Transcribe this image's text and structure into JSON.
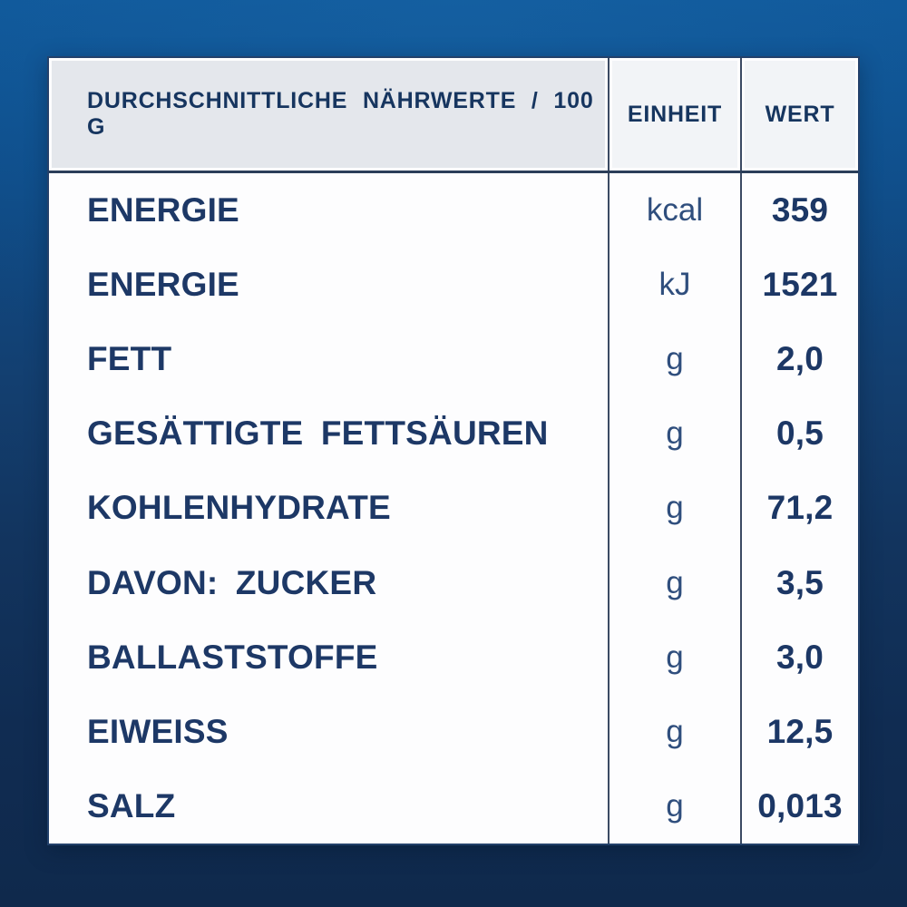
{
  "table": {
    "header": {
      "nutrients": "DURCHSCHNITTLICHE NÄHRWERTE / 100 G",
      "unit": "EINHEIT",
      "value": "WERT"
    },
    "rows": [
      {
        "label": "ENERGIE",
        "unit": "kcal",
        "value": "359"
      },
      {
        "label": "ENERGIE",
        "unit": "kJ",
        "value": "1521"
      },
      {
        "label": "FETT",
        "unit": "g",
        "value": "2,0"
      },
      {
        "label": "GESÄTTIGTE FETTSÄUREN",
        "unit": "g",
        "value": "0,5"
      },
      {
        "label": "KOHLENHYDRATE",
        "unit": "g",
        "value": "71,2"
      },
      {
        "label": "DAVON: ZUCKER",
        "unit": "g",
        "value": "3,5"
      },
      {
        "label": "BALLASTSTOFFE",
        "unit": "g",
        "value": "3,0"
      },
      {
        "label": "EIWEISS",
        "unit": "g",
        "value": "12,5"
      },
      {
        "label": "SALZ",
        "unit": "g",
        "value": "0,013"
      }
    ]
  },
  "colors": {
    "background_top": "#0f5799",
    "background_bottom": "#0f294c",
    "card_background": "#fdfdfe",
    "header_cell_gray": "#e4e7ec",
    "header_cell_light": "#f2f4f7",
    "text_navy": "#1d3866",
    "grid_line": "#3b4a63"
  }
}
